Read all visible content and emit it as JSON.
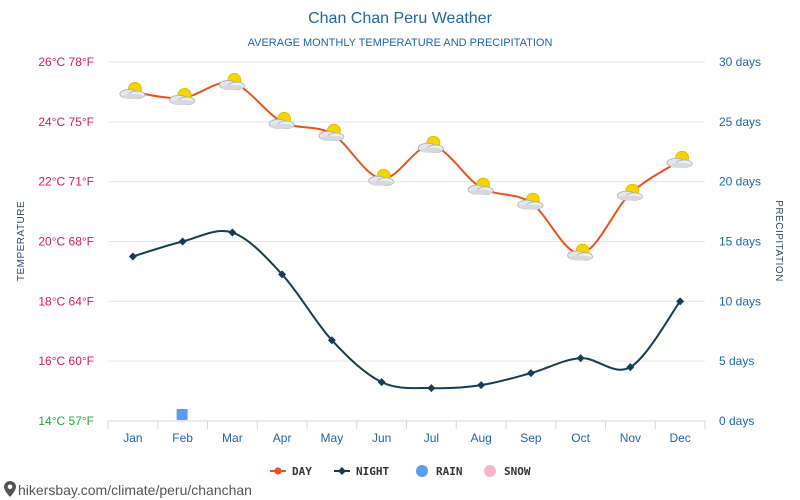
{
  "chart_data": {
    "type": "line",
    "title": "Chan Chan Peru Weather",
    "subtitle": "AVERAGE MONTHLY TEMPERATURE AND PRECIPITATION",
    "categories": [
      "Jan",
      "Feb",
      "Mar",
      "Apr",
      "May",
      "Jun",
      "Jul",
      "Aug",
      "Sep",
      "Oct",
      "Nov",
      "Dec"
    ],
    "series": [
      {
        "name": "DAY",
        "axis": "left",
        "unit": "°C",
        "color": "#e8541c",
        "marker": "weather-partly-cloudy-icon",
        "values": [
          25.0,
          24.8,
          25.3,
          24.0,
          23.6,
          22.1,
          23.2,
          21.8,
          21.3,
          19.6,
          21.6,
          22.7
        ]
      },
      {
        "name": "NIGHT",
        "axis": "left",
        "unit": "°C",
        "color": "#123e57",
        "marker": "diamond",
        "values": [
          19.5,
          20.0,
          20.3,
          18.9,
          16.7,
          15.3,
          15.1,
          15.2,
          15.6,
          16.1,
          15.8,
          18.0
        ]
      },
      {
        "name": "RAIN",
        "axis": "right",
        "unit": "days",
        "color": "#5b9bf0",
        "marker": "square",
        "values": [
          0,
          0.5,
          0,
          0,
          0,
          0,
          0,
          0,
          0,
          0,
          0,
          0
        ]
      },
      {
        "name": "SNOW",
        "axis": "right",
        "unit": "days",
        "color": "#f7b6cc",
        "marker": "circle",
        "values": [
          0,
          0,
          0,
          0,
          0,
          0,
          0,
          0,
          0,
          0,
          0,
          0
        ]
      }
    ],
    "y_left": {
      "label": "TEMPERATURE",
      "ylim": [
        14,
        26
      ],
      "ticks": [
        {
          "value": 26,
          "label": "26°C 78°F"
        },
        {
          "value": 24,
          "label": "24°C 75°F"
        },
        {
          "value": 22,
          "label": "22°C 71°F"
        },
        {
          "value": 20,
          "label": "20°C 68°F"
        },
        {
          "value": 18,
          "label": "18°C 64°F"
        },
        {
          "value": 16,
          "label": "16°C 60°F"
        },
        {
          "value": 14,
          "label": "14°C 57°F"
        }
      ]
    },
    "y_right": {
      "label": "PRECIPITATION",
      "ylim": [
        0,
        30
      ],
      "ticks": [
        {
          "value": 30,
          "label": "30 days"
        },
        {
          "value": 25,
          "label": "25 days"
        },
        {
          "value": 20,
          "label": "20 days"
        },
        {
          "value": 15,
          "label": "15 days"
        },
        {
          "value": 10,
          "label": "10 days"
        },
        {
          "value": 5,
          "label": "5 days"
        },
        {
          "value": 0,
          "label": "0 days"
        }
      ]
    },
    "grid": true,
    "legend_position": "bottom-center",
    "legend": [
      {
        "label": "DAY",
        "color": "#e8541c",
        "marker": "circle-line"
      },
      {
        "label": "NIGHT",
        "color": "#123e57",
        "marker": "diamond-line"
      },
      {
        "label": "RAIN",
        "color": "#5b9bf0",
        "marker": "circle"
      },
      {
        "label": "SNOW",
        "color": "#f7b6cc",
        "marker": "circle"
      }
    ]
  },
  "source": {
    "text": "hikersbay.com/climate/peru/chanchan",
    "icon": "map-pin-icon"
  },
  "colors": {
    "left_axis_ticks": "#d6185f",
    "left_axis_min_tick": "#27a53a",
    "right_axis_ticks": "#2066a8",
    "title": "#2066a8",
    "grid": "#e6e6e6"
  }
}
